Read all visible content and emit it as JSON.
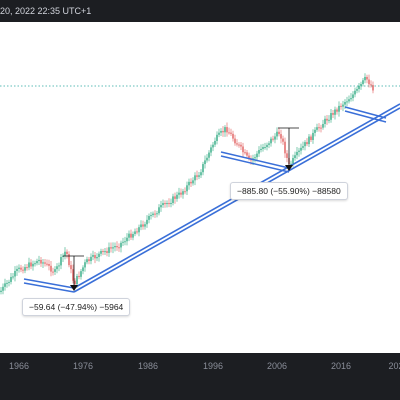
{
  "header": {
    "datetime_text": "20, 2022 22:35 UTC+1"
  },
  "colors": {
    "up": "#2aa87f",
    "down": "#e05a5a",
    "trend": "#3a6fd8",
    "dotted": "#2aa8a0"
  },
  "time_axis": {
    "ticks": [
      "1966",
      "1976",
      "1986",
      "1996",
      "2006",
      "2016",
      "202"
    ]
  },
  "annotations": {
    "measure_1": "−59.64 (−47.94%) −5964",
    "measure_2": "−885.80 (−55.90%) −88580"
  }
}
